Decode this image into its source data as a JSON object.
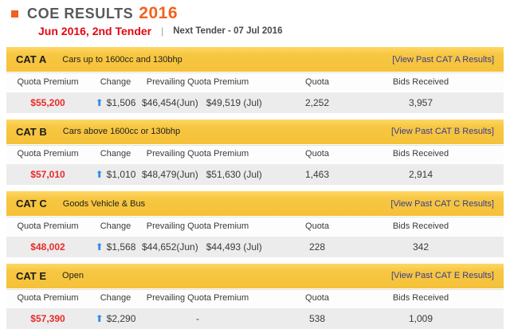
{
  "page": {
    "title": "COE RESULTS",
    "title_year": "2016",
    "tender_label": "Jun 2016, 2nd Tender",
    "separator": "|",
    "next_tender": "Next Tender - 07 Jul 2016"
  },
  "colors": {
    "header_bar_yellow": "#F5C139",
    "title_orange": "#F4611D",
    "tender_red": "#E30613",
    "price_red": "#E82A2A",
    "link_navy": "#363D91",
    "arrow_blue": "#2E8BE6",
    "row_gray": "#ECECEC"
  },
  "icons": {
    "bullet": "■",
    "up_arrow": "⬆"
  },
  "table_headers": [
    "Quota Premium",
    "Change",
    "Prevailing Quota Premium",
    "Quota",
    "Bids Received"
  ],
  "sections": [
    {
      "name": "CAT A",
      "description": "Cars up to 1600cc and 130bhp",
      "link_label": "[View Past CAT A Results]",
      "quota_premium": "$55,200",
      "change": "$1,506",
      "change_direction": "up",
      "prevailing": "$46,454(Jun)   $49,519 (Jul)",
      "quota": "2,252",
      "bids_received": "3,957"
    },
    {
      "name": "CAT B",
      "description": "Cars above 1600cc or 130bhp",
      "link_label": "[View Past CAT B Results]",
      "quota_premium": "$57,010",
      "change": "$1,010",
      "change_direction": "up",
      "prevailing": "$48,479(Jun)   $51,630 (Jul)",
      "quota": "1,463",
      "bids_received": "2,914"
    },
    {
      "name": "CAT C",
      "description": "Goods Vehicle & Bus",
      "link_label": "[View Past CAT C Results]",
      "quota_premium": "$48,002",
      "change": "$1,568",
      "change_direction": "up",
      "prevailing": "$44,652(Jun)   $44,493 (Jul)",
      "quota": "228",
      "bids_received": "342"
    },
    {
      "name": "CAT E",
      "description": "Open",
      "link_label": "[View Past CAT E Results]",
      "quota_premium": "$57,390",
      "change": "$2,290",
      "change_direction": "up",
      "prevailing": "-",
      "quota": "538",
      "bids_received": "1,009"
    }
  ]
}
